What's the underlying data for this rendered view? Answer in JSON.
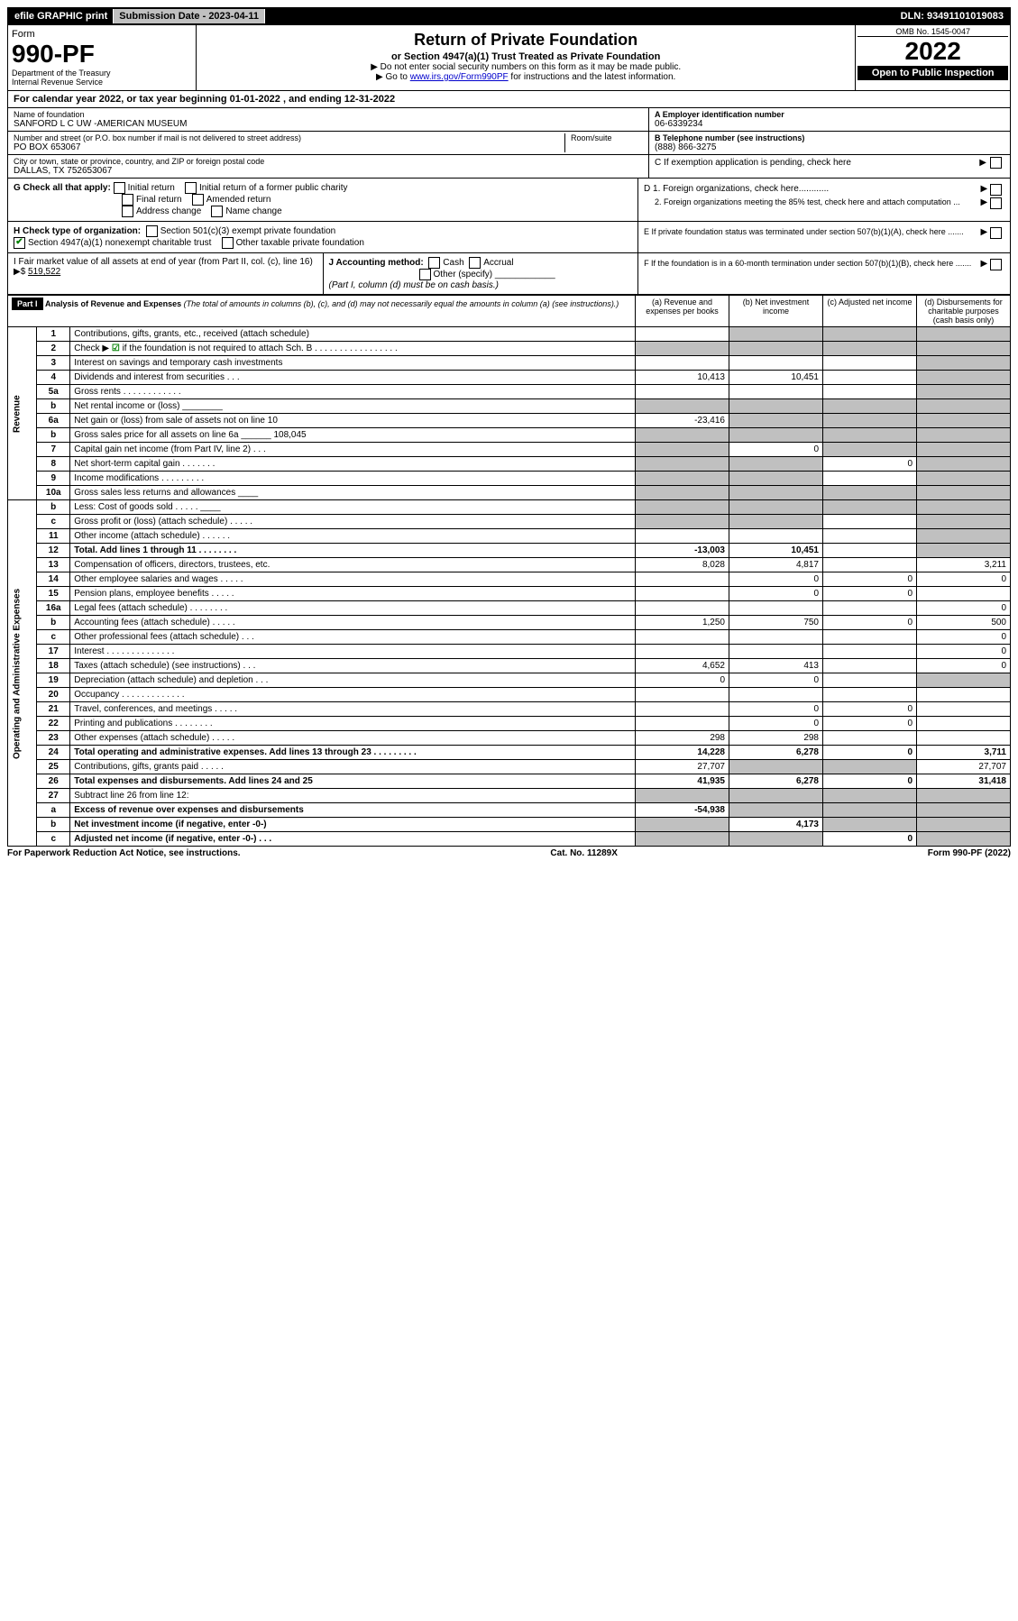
{
  "topbar": {
    "efile": "efile GRAPHIC print",
    "sub_label": "Submission Date - 2023-04-11",
    "dln": "DLN: 93491101019083"
  },
  "header": {
    "form_word": "Form",
    "form_num": "990-PF",
    "dept": "Department of the Treasury\nInternal Revenue Service",
    "title": "Return of Private Foundation",
    "subtitle": "or Section 4947(a)(1) Trust Treated as Private Foundation",
    "instr1": "▶ Do not enter social security numbers on this form as it may be made public.",
    "instr2_pre": "▶ Go to ",
    "instr2_link": "www.irs.gov/Form990PF",
    "instr2_post": " for instructions and the latest information.",
    "omb": "OMB No. 1545-0047",
    "year": "2022",
    "open": "Open to Public Inspection"
  },
  "calyear": "For calendar year 2022, or tax year beginning 01-01-2022                    , and ending 12-31-2022",
  "info": {
    "name_label": "Name of foundation",
    "name": "SANFORD L C UW -AMERICAN MUSEUM",
    "addr_label": "Number and street (or P.O. box number if mail is not delivered to street address)",
    "room_label": "Room/suite",
    "addr": "PO BOX 653067",
    "city_label": "City or town, state or province, country, and ZIP or foreign postal code",
    "city": "DALLAS, TX  752653067",
    "a_label": "A Employer identification number",
    "a_val": "06-6339234",
    "b_label": "B Telephone number (see instructions)",
    "b_val": "(888) 866-3275",
    "c_label": "C If exemption application is pending, check here"
  },
  "checks": {
    "g_label": "G Check all that apply:",
    "g1": "Initial return",
    "g2": "Initial return of a former public charity",
    "g3": "Final return",
    "g4": "Amended return",
    "g5": "Address change",
    "g6": "Name change",
    "h_label": "H Check type of organization:",
    "h1": "Section 501(c)(3) exempt private foundation",
    "h2": "Section 4947(a)(1) nonexempt charitable trust",
    "h3": "Other taxable private foundation",
    "d1": "D 1. Foreign organizations, check here............",
    "d2": "2. Foreign organizations meeting the 85% test, check here and attach computation ...",
    "e": "E If private foundation status was terminated under section 507(b)(1)(A), check here .......",
    "i_label": "I Fair market value of all assets at end of year (from Part II, col. (c), line 16) ▶$",
    "i_val": "519,522",
    "j_label": "J Accounting method:",
    "j1": "Cash",
    "j2": "Accrual",
    "j3": "Other (specify)",
    "j_note": "(Part I, column (d) must be on cash basis.)",
    "f": "F If the foundation is in a 60-month termination under section 507(b)(1)(B), check here ......."
  },
  "part1": {
    "label": "Part I",
    "title": "Analysis of Revenue and Expenses",
    "title_note": "(The total of amounts in columns (b), (c), and (d) may not necessarily equal the amounts in column (a) (see instructions).)",
    "col_a": "(a) Revenue and expenses per books",
    "col_b": "(b) Net investment income",
    "col_c": "(c) Adjusted net income",
    "col_d": "(d) Disbursements for charitable purposes (cash basis only)",
    "side_rev": "Revenue",
    "side_exp": "Operating and Administrative Expenses"
  },
  "rows": [
    {
      "n": "1",
      "d": "Contributions, gifts, grants, etc., received (attach schedule)",
      "a": "",
      "b": "",
      "c": "",
      "dd": "",
      "sb": true,
      "sc": true,
      "sd": true
    },
    {
      "n": "2",
      "d": "Check ▶ ☑ if the foundation is not required to attach Sch. B  . . . . . . . . . . . . . . . . .",
      "a": "",
      "b": "",
      "c": "",
      "dd": "",
      "sa": true,
      "sb": true,
      "sc": true,
      "sd": true,
      "green": true
    },
    {
      "n": "3",
      "d": "Interest on savings and temporary cash investments",
      "a": "",
      "b": "",
      "c": "",
      "dd": "",
      "sd": true
    },
    {
      "n": "4",
      "d": "Dividends and interest from securities  . . .",
      "a": "10,413",
      "b": "10,451",
      "c": "",
      "dd": "",
      "sd": true
    },
    {
      "n": "5a",
      "d": "Gross rents  . . . . . . . . . . . .",
      "a": "",
      "b": "",
      "c": "",
      "dd": "",
      "sd": true
    },
    {
      "n": "b",
      "d": "Net rental income or (loss) ________",
      "a": "",
      "b": "",
      "c": "",
      "dd": "",
      "sa": true,
      "sb": true,
      "sc": true,
      "sd": true
    },
    {
      "n": "6a",
      "d": "Net gain or (loss) from sale of assets not on line 10",
      "a": "-23,416",
      "b": "",
      "c": "",
      "dd": "",
      "sb": true,
      "sc": true,
      "sd": true
    },
    {
      "n": "b",
      "d": "Gross sales price for all assets on line 6a ______ 108,045",
      "a": "",
      "b": "",
      "c": "",
      "dd": "",
      "sa": true,
      "sb": true,
      "sc": true,
      "sd": true
    },
    {
      "n": "7",
      "d": "Capital gain net income (from Part IV, line 2)  . . .",
      "a": "",
      "b": "0",
      "c": "",
      "dd": "",
      "sa": true,
      "sc": true,
      "sd": true
    },
    {
      "n": "8",
      "d": "Net short-term capital gain  . . . . . . .",
      "a": "",
      "b": "",
      "c": "0",
      "dd": "",
      "sa": true,
      "sb": true,
      "sd": true
    },
    {
      "n": "9",
      "d": "Income modifications  . . . . . . . . .",
      "a": "",
      "b": "",
      "c": "",
      "dd": "",
      "sa": true,
      "sb": true,
      "sd": true
    },
    {
      "n": "10a",
      "d": "Gross sales less returns and allowances ____",
      "a": "",
      "b": "",
      "c": "",
      "dd": "",
      "sa": true,
      "sb": true,
      "sc": true,
      "sd": true
    },
    {
      "n": "b",
      "d": "Less: Cost of goods sold  . . . . . ____",
      "a": "",
      "b": "",
      "c": "",
      "dd": "",
      "sa": true,
      "sb": true,
      "sc": true,
      "sd": true
    },
    {
      "n": "c",
      "d": "Gross profit or (loss) (attach schedule)  . . . . .",
      "a": "",
      "b": "",
      "c": "",
      "dd": "",
      "sa": true,
      "sb": true,
      "sd": true
    },
    {
      "n": "11",
      "d": "Other income (attach schedule)  . . . . . .",
      "a": "",
      "b": "",
      "c": "",
      "dd": "",
      "sd": true
    },
    {
      "n": "12",
      "d": "Total. Add lines 1 through 11  . . . . . . . .",
      "a": "-13,003",
      "b": "10,451",
      "c": "",
      "dd": "",
      "sd": true,
      "bold": true
    },
    {
      "n": "13",
      "d": "Compensation of officers, directors, trustees, etc.",
      "a": "8,028",
      "b": "4,817",
      "c": "",
      "dd": "3,211"
    },
    {
      "n": "14",
      "d": "Other employee salaries and wages  . . . . .",
      "a": "",
      "b": "0",
      "c": "0",
      "dd": "0"
    },
    {
      "n": "15",
      "d": "Pension plans, employee benefits  . . . . .",
      "a": "",
      "b": "0",
      "c": "0",
      "dd": ""
    },
    {
      "n": "16a",
      "d": "Legal fees (attach schedule)  . . . . . . . .",
      "a": "",
      "b": "",
      "c": "",
      "dd": "0"
    },
    {
      "n": "b",
      "d": "Accounting fees (attach schedule)  . . . . .",
      "a": "1,250",
      "b": "750",
      "c": "0",
      "dd": "500"
    },
    {
      "n": "c",
      "d": "Other professional fees (attach schedule)  . . .",
      "a": "",
      "b": "",
      "c": "",
      "dd": "0"
    },
    {
      "n": "17",
      "d": "Interest  . . . . . . . . . . . . . .",
      "a": "",
      "b": "",
      "c": "",
      "dd": "0"
    },
    {
      "n": "18",
      "d": "Taxes (attach schedule) (see instructions)  . . .",
      "a": "4,652",
      "b": "413",
      "c": "",
      "dd": "0"
    },
    {
      "n": "19",
      "d": "Depreciation (attach schedule) and depletion  . . .",
      "a": "0",
      "b": "0",
      "c": "",
      "dd": "",
      "sd": true
    },
    {
      "n": "20",
      "d": "Occupancy  . . . . . . . . . . . . .",
      "a": "",
      "b": "",
      "c": "",
      "dd": ""
    },
    {
      "n": "21",
      "d": "Travel, conferences, and meetings  . . . . .",
      "a": "",
      "b": "0",
      "c": "0",
      "dd": ""
    },
    {
      "n": "22",
      "d": "Printing and publications  . . . . . . . .",
      "a": "",
      "b": "0",
      "c": "0",
      "dd": ""
    },
    {
      "n": "23",
      "d": "Other expenses (attach schedule)  . . . . .",
      "a": "298",
      "b": "298",
      "c": "",
      "dd": ""
    },
    {
      "n": "24",
      "d": "Total operating and administrative expenses. Add lines 13 through 23  . . . . . . . . .",
      "a": "14,228",
      "b": "6,278",
      "c": "0",
      "dd": "3,711",
      "bold": true
    },
    {
      "n": "25",
      "d": "Contributions, gifts, grants paid  . . . . .",
      "a": "27,707",
      "b": "",
      "c": "",
      "dd": "27,707",
      "sb": true,
      "sc": true
    },
    {
      "n": "26",
      "d": "Total expenses and disbursements. Add lines 24 and 25",
      "a": "41,935",
      "b": "6,278",
      "c": "0",
      "dd": "31,418",
      "bold": true
    },
    {
      "n": "27",
      "d": "Subtract line 26 from line 12:",
      "a": "",
      "b": "",
      "c": "",
      "dd": "",
      "sa": true,
      "sb": true,
      "sc": true,
      "sd": true
    },
    {
      "n": "a",
      "d": "Excess of revenue over expenses and disbursements",
      "a": "-54,938",
      "b": "",
      "c": "",
      "dd": "",
      "sb": true,
      "sc": true,
      "sd": true,
      "bold": true
    },
    {
      "n": "b",
      "d": "Net investment income (if negative, enter -0-)",
      "a": "",
      "b": "4,173",
      "c": "",
      "dd": "",
      "sa": true,
      "sc": true,
      "sd": true,
      "bold": true
    },
    {
      "n": "c",
      "d": "Adjusted net income (if negative, enter -0-)  . . .",
      "a": "",
      "b": "",
      "c": "0",
      "dd": "",
      "sa": true,
      "sb": true,
      "sd": true,
      "bold": true
    }
  ],
  "footer": {
    "left": "For Paperwork Reduction Act Notice, see instructions.",
    "mid": "Cat. No. 11289X",
    "right": "Form 990-PF (2022)"
  }
}
